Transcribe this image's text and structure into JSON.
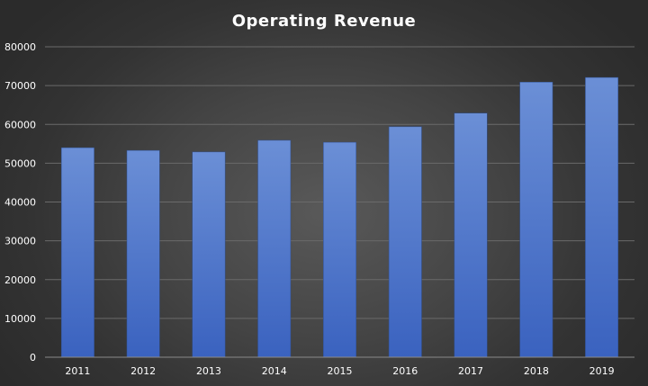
{
  "chart_data": {
    "type": "bar",
    "title": "Operating  Revenue",
    "xlabel": "",
    "ylabel": "",
    "categories": [
      "2011",
      "2012",
      "2013",
      "2014",
      "2015",
      "2016",
      "2017",
      "2018",
      "2019"
    ],
    "values": [
      54000,
      53300,
      52900,
      55900,
      55400,
      59400,
      62900,
      70900,
      72100
    ],
    "ylim": [
      0,
      80000
    ],
    "yticks": [
      0,
      10000,
      20000,
      30000,
      40000,
      50000,
      60000,
      70000,
      80000
    ],
    "ytick_labels": [
      "0",
      "10000",
      "20000",
      "30000",
      "40000",
      "50000",
      "60000",
      "70000",
      "80000"
    ],
    "grid": true,
    "legend": "none",
    "colors": {
      "bar_top": "#6b8fd6",
      "bar_bottom": "#3a62bf",
      "background": "#444444",
      "text": "#ffffff"
    }
  }
}
